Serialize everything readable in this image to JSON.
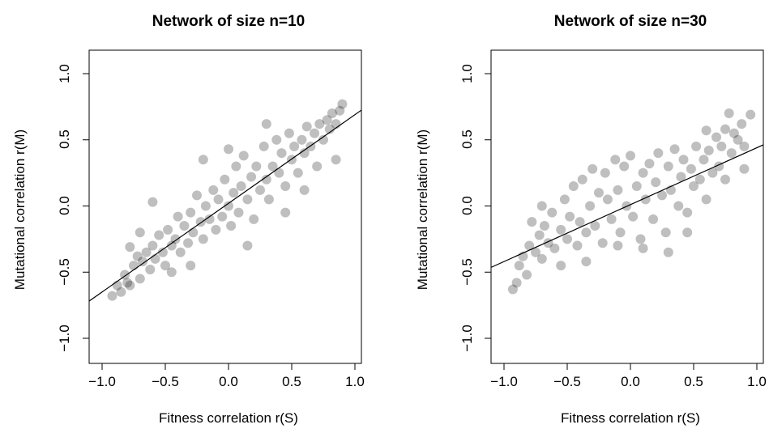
{
  "chart_data": [
    {
      "type": "scatter",
      "title": "Network of size n=10",
      "xlabel": "Fitness correlation r(S)",
      "ylabel": "Mutational correlation r(M)",
      "xlim": [
        -1.0,
        1.0
      ],
      "ylim": [
        -1.0,
        1.0
      ],
      "xticks": [
        "-1.0",
        "-0.5",
        "0.0",
        "0.5",
        "1.0"
      ],
      "yticks": [
        "-1.0",
        "-0.5",
        "0.0",
        "0.5",
        "1.0"
      ],
      "grid": false,
      "legend": "none",
      "point_color": "rgba(0,0,0,0.25)",
      "fit_line": {
        "slope": 0.67,
        "intercept": 0.02
      },
      "points": [
        {
          "x": -0.92,
          "y": -0.68
        },
        {
          "x": -0.88,
          "y": -0.6
        },
        {
          "x": -0.85,
          "y": -0.65
        },
        {
          "x": -0.82,
          "y": -0.52
        },
        {
          "x": -0.8,
          "y": -0.58
        },
        {
          "x": -0.78,
          "y": -0.31
        },
        {
          "x": -0.78,
          "y": -0.6
        },
        {
          "x": -0.75,
          "y": -0.45
        },
        {
          "x": -0.72,
          "y": -0.38
        },
        {
          "x": -0.7,
          "y": -0.55
        },
        {
          "x": -0.68,
          "y": -0.42
        },
        {
          "x": -0.65,
          "y": -0.35
        },
        {
          "x": -0.62,
          "y": -0.48
        },
        {
          "x": -0.6,
          "y": -0.3
        },
        {
          "x": -0.58,
          "y": -0.4
        },
        {
          "x": -0.55,
          "y": -0.22
        },
        {
          "x": -0.52,
          "y": -0.35
        },
        {
          "x": -0.5,
          "y": -0.45
        },
        {
          "x": -0.48,
          "y": -0.18
        },
        {
          "x": -0.45,
          "y": -0.3
        },
        {
          "x": -0.42,
          "y": -0.25
        },
        {
          "x": -0.4,
          "y": -0.08
        },
        {
          "x": -0.38,
          "y": -0.35
        },
        {
          "x": -0.35,
          "y": -0.15
        },
        {
          "x": -0.32,
          "y": -0.28
        },
        {
          "x": -0.3,
          "y": -0.05
        },
        {
          "x": -0.28,
          "y": -0.2
        },
        {
          "x": -0.25,
          "y": 0.08
        },
        {
          "x": -0.22,
          "y": -0.12
        },
        {
          "x": -0.2,
          "y": -0.25
        },
        {
          "x": -0.18,
          "y": 0.0
        },
        {
          "x": -0.15,
          "y": -0.1
        },
        {
          "x": -0.12,
          "y": 0.12
        },
        {
          "x": -0.1,
          "y": -0.18
        },
        {
          "x": -0.08,
          "y": 0.05
        },
        {
          "x": -0.05,
          "y": -0.08
        },
        {
          "x": -0.03,
          "y": 0.2
        },
        {
          "x": 0.0,
          "y": 0.0
        },
        {
          "x": 0.02,
          "y": -0.15
        },
        {
          "x": 0.04,
          "y": 0.1
        },
        {
          "x": 0.06,
          "y": 0.3
        },
        {
          "x": 0.08,
          "y": -0.05
        },
        {
          "x": 0.1,
          "y": 0.15
        },
        {
          "x": 0.12,
          "y": 0.38
        },
        {
          "x": 0.15,
          "y": 0.05
        },
        {
          "x": 0.18,
          "y": 0.22
        },
        {
          "x": 0.2,
          "y": -0.1
        },
        {
          "x": 0.22,
          "y": 0.3
        },
        {
          "x": 0.25,
          "y": 0.12
        },
        {
          "x": 0.28,
          "y": 0.45
        },
        {
          "x": 0.3,
          "y": 0.2
        },
        {
          "x": 0.32,
          "y": 0.05
        },
        {
          "x": 0.35,
          "y": 0.3
        },
        {
          "x": 0.38,
          "y": 0.5
        },
        {
          "x": 0.4,
          "y": 0.25
        },
        {
          "x": 0.42,
          "y": 0.4
        },
        {
          "x": 0.45,
          "y": 0.15
        },
        {
          "x": 0.48,
          "y": 0.55
        },
        {
          "x": 0.5,
          "y": 0.35
        },
        {
          "x": 0.52,
          "y": 0.45
        },
        {
          "x": 0.55,
          "y": 0.25
        },
        {
          "x": 0.58,
          "y": 0.5
        },
        {
          "x": 0.6,
          "y": 0.4
        },
        {
          "x": 0.62,
          "y": 0.6
        },
        {
          "x": 0.65,
          "y": 0.45
        },
        {
          "x": 0.68,
          "y": 0.55
        },
        {
          "x": 0.72,
          "y": 0.62
        },
        {
          "x": 0.75,
          "y": 0.5
        },
        {
          "x": 0.78,
          "y": 0.65
        },
        {
          "x": 0.8,
          "y": 0.58
        },
        {
          "x": 0.82,
          "y": 0.7
        },
        {
          "x": 0.85,
          "y": 0.62
        },
        {
          "x": 0.88,
          "y": 0.72
        },
        {
          "x": 0.9,
          "y": 0.77
        },
        {
          "x": 0.85,
          "y": 0.35
        },
        {
          "x": -0.6,
          "y": 0.03
        },
        {
          "x": 0.3,
          "y": 0.62
        },
        {
          "x": -0.2,
          "y": 0.35
        },
        {
          "x": 0.6,
          "y": 0.12
        },
        {
          "x": -0.45,
          "y": -0.5
        },
        {
          "x": 0.15,
          "y": -0.3
        },
        {
          "x": 0.0,
          "y": 0.43
        },
        {
          "x": -0.3,
          "y": -0.45
        },
        {
          "x": 0.45,
          "y": -0.05
        },
        {
          "x": 0.7,
          "y": 0.3
        },
        {
          "x": -0.7,
          "y": -0.2
        }
      ]
    },
    {
      "type": "scatter",
      "title": "Network of size n=30",
      "xlabel": "Fitness correlation r(S)",
      "ylabel": "Mutational correlation r(M)",
      "xlim": [
        -1.0,
        1.0
      ],
      "ylim": [
        -1.0,
        1.0
      ],
      "xticks": [
        "-1.0",
        "-0.5",
        "0.0",
        "0.5",
        "1.0"
      ],
      "yticks": [
        "-1.0",
        "-0.5",
        "0.0",
        "0.5",
        "1.0"
      ],
      "grid": false,
      "legend": "none",
      "point_color": "rgba(0,0,0,0.25)",
      "fit_line": {
        "slope": 0.43,
        "intercept": 0.01
      },
      "points": [
        {
          "x": -0.93,
          "y": -0.63
        },
        {
          "x": -0.9,
          "y": -0.58
        },
        {
          "x": -0.88,
          "y": -0.45
        },
        {
          "x": -0.85,
          "y": -0.38
        },
        {
          "x": -0.82,
          "y": -0.52
        },
        {
          "x": -0.8,
          "y": -0.3
        },
        {
          "x": -0.78,
          "y": -0.12
        },
        {
          "x": -0.75,
          "y": -0.35
        },
        {
          "x": -0.72,
          "y": -0.22
        },
        {
          "x": -0.7,
          "y": -0.4
        },
        {
          "x": -0.68,
          "y": -0.15
        },
        {
          "x": -0.65,
          "y": -0.28
        },
        {
          "x": -0.62,
          "y": -0.05
        },
        {
          "x": -0.6,
          "y": -0.32
        },
        {
          "x": -0.55,
          "y": -0.18
        },
        {
          "x": -0.52,
          "y": 0.05
        },
        {
          "x": -0.5,
          "y": -0.25
        },
        {
          "x": -0.48,
          "y": -0.08
        },
        {
          "x": -0.45,
          "y": 0.15
        },
        {
          "x": -0.42,
          "y": -0.3
        },
        {
          "x": -0.4,
          "y": -0.12
        },
        {
          "x": -0.38,
          "y": 0.2
        },
        {
          "x": -0.35,
          "y": -0.2
        },
        {
          "x": -0.32,
          "y": 0.0
        },
        {
          "x": -0.3,
          "y": 0.28
        },
        {
          "x": -0.28,
          "y": -0.15
        },
        {
          "x": -0.25,
          "y": 0.1
        },
        {
          "x": -0.22,
          "y": -0.28
        },
        {
          "x": -0.2,
          "y": 0.25
        },
        {
          "x": -0.18,
          "y": 0.05
        },
        {
          "x": -0.15,
          "y": -0.1
        },
        {
          "x": -0.12,
          "y": 0.35
        },
        {
          "x": -0.1,
          "y": 0.12
        },
        {
          "x": -0.08,
          "y": -0.2
        },
        {
          "x": -0.05,
          "y": 0.3
        },
        {
          "x": -0.03,
          "y": 0.0
        },
        {
          "x": 0.0,
          "y": 0.38
        },
        {
          "x": 0.02,
          "y": -0.08
        },
        {
          "x": 0.05,
          "y": 0.15
        },
        {
          "x": 0.08,
          "y": -0.25
        },
        {
          "x": 0.1,
          "y": 0.25
        },
        {
          "x": 0.12,
          "y": 0.05
        },
        {
          "x": 0.15,
          "y": 0.32
        },
        {
          "x": 0.18,
          "y": -0.1
        },
        {
          "x": 0.2,
          "y": 0.18
        },
        {
          "x": 0.22,
          "y": 0.4
        },
        {
          "x": 0.25,
          "y": 0.08
        },
        {
          "x": 0.28,
          "y": -0.2
        },
        {
          "x": 0.3,
          "y": 0.3
        },
        {
          "x": 0.32,
          "y": 0.12
        },
        {
          "x": 0.35,
          "y": 0.43
        },
        {
          "x": 0.38,
          "y": 0.0
        },
        {
          "x": 0.4,
          "y": 0.22
        },
        {
          "x": 0.42,
          "y": 0.35
        },
        {
          "x": 0.45,
          "y": -0.05
        },
        {
          "x": 0.48,
          "y": 0.28
        },
        {
          "x": 0.5,
          "y": 0.15
        },
        {
          "x": 0.52,
          "y": 0.45
        },
        {
          "x": 0.55,
          "y": 0.2
        },
        {
          "x": 0.58,
          "y": 0.35
        },
        {
          "x": 0.6,
          "y": 0.05
        },
        {
          "x": 0.62,
          "y": 0.42
        },
        {
          "x": 0.65,
          "y": 0.25
        },
        {
          "x": 0.68,
          "y": 0.52
        },
        {
          "x": 0.7,
          "y": 0.3
        },
        {
          "x": 0.72,
          "y": 0.45
        },
        {
          "x": 0.75,
          "y": 0.58
        },
        {
          "x": 0.78,
          "y": 0.7
        },
        {
          "x": 0.8,
          "y": 0.4
        },
        {
          "x": 0.82,
          "y": 0.55
        },
        {
          "x": 0.85,
          "y": 0.5
        },
        {
          "x": 0.88,
          "y": 0.62
        },
        {
          "x": 0.9,
          "y": 0.45
        },
        {
          "x": 0.95,
          "y": 0.69
        },
        {
          "x": 0.75,
          "y": 0.2
        },
        {
          "x": -0.55,
          "y": -0.45
        },
        {
          "x": 0.6,
          "y": 0.57
        },
        {
          "x": -0.7,
          "y": 0.0
        },
        {
          "x": 0.45,
          "y": -0.2
        },
        {
          "x": -0.35,
          "y": -0.42
        },
        {
          "x": 0.1,
          "y": -0.32
        },
        {
          "x": -0.1,
          "y": -0.3
        },
        {
          "x": 0.3,
          "y": -0.35
        },
        {
          "x": 0.9,
          "y": 0.28
        }
      ]
    }
  ]
}
